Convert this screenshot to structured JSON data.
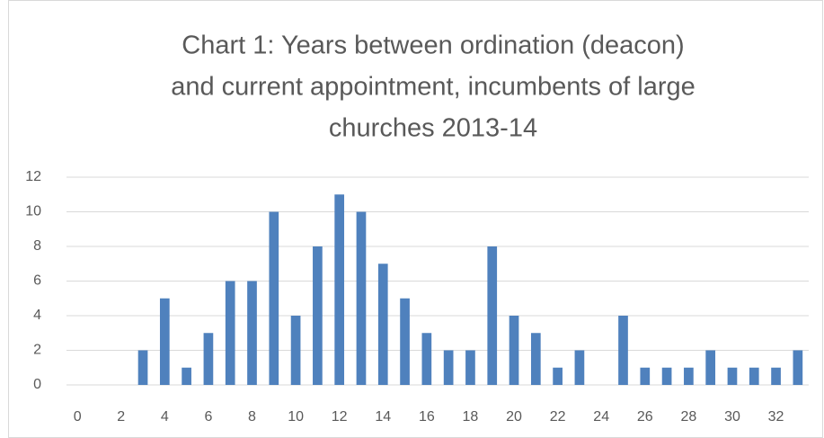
{
  "chart_data": {
    "type": "bar",
    "title": [
      "Chart 1: Years between ordination (deacon)",
      "and current appointment, incumbents of large",
      "churches 2013-14"
    ],
    "categories": [
      "0",
      null,
      "2",
      null,
      "4",
      null,
      "6",
      null,
      "8",
      null,
      "10",
      null,
      "12",
      null,
      "14",
      null,
      "16",
      null,
      "18",
      null,
      "20",
      null,
      "22",
      null,
      "24",
      null,
      "26",
      null,
      "28",
      null,
      "30",
      null,
      "32",
      null
    ],
    "values": [
      0,
      0,
      0,
      2,
      5,
      1,
      3,
      6,
      6,
      10,
      4,
      8,
      11,
      10,
      7,
      5,
      3,
      2,
      2,
      8,
      4,
      3,
      1,
      2,
      0,
      4,
      1,
      1,
      1,
      2,
      1,
      1,
      1,
      2
    ],
    "color": "#4f81bd",
    "ylim": [
      0,
      12
    ],
    "yticks": [
      0,
      2,
      4,
      6,
      8,
      10,
      12
    ],
    "grid": true
  }
}
